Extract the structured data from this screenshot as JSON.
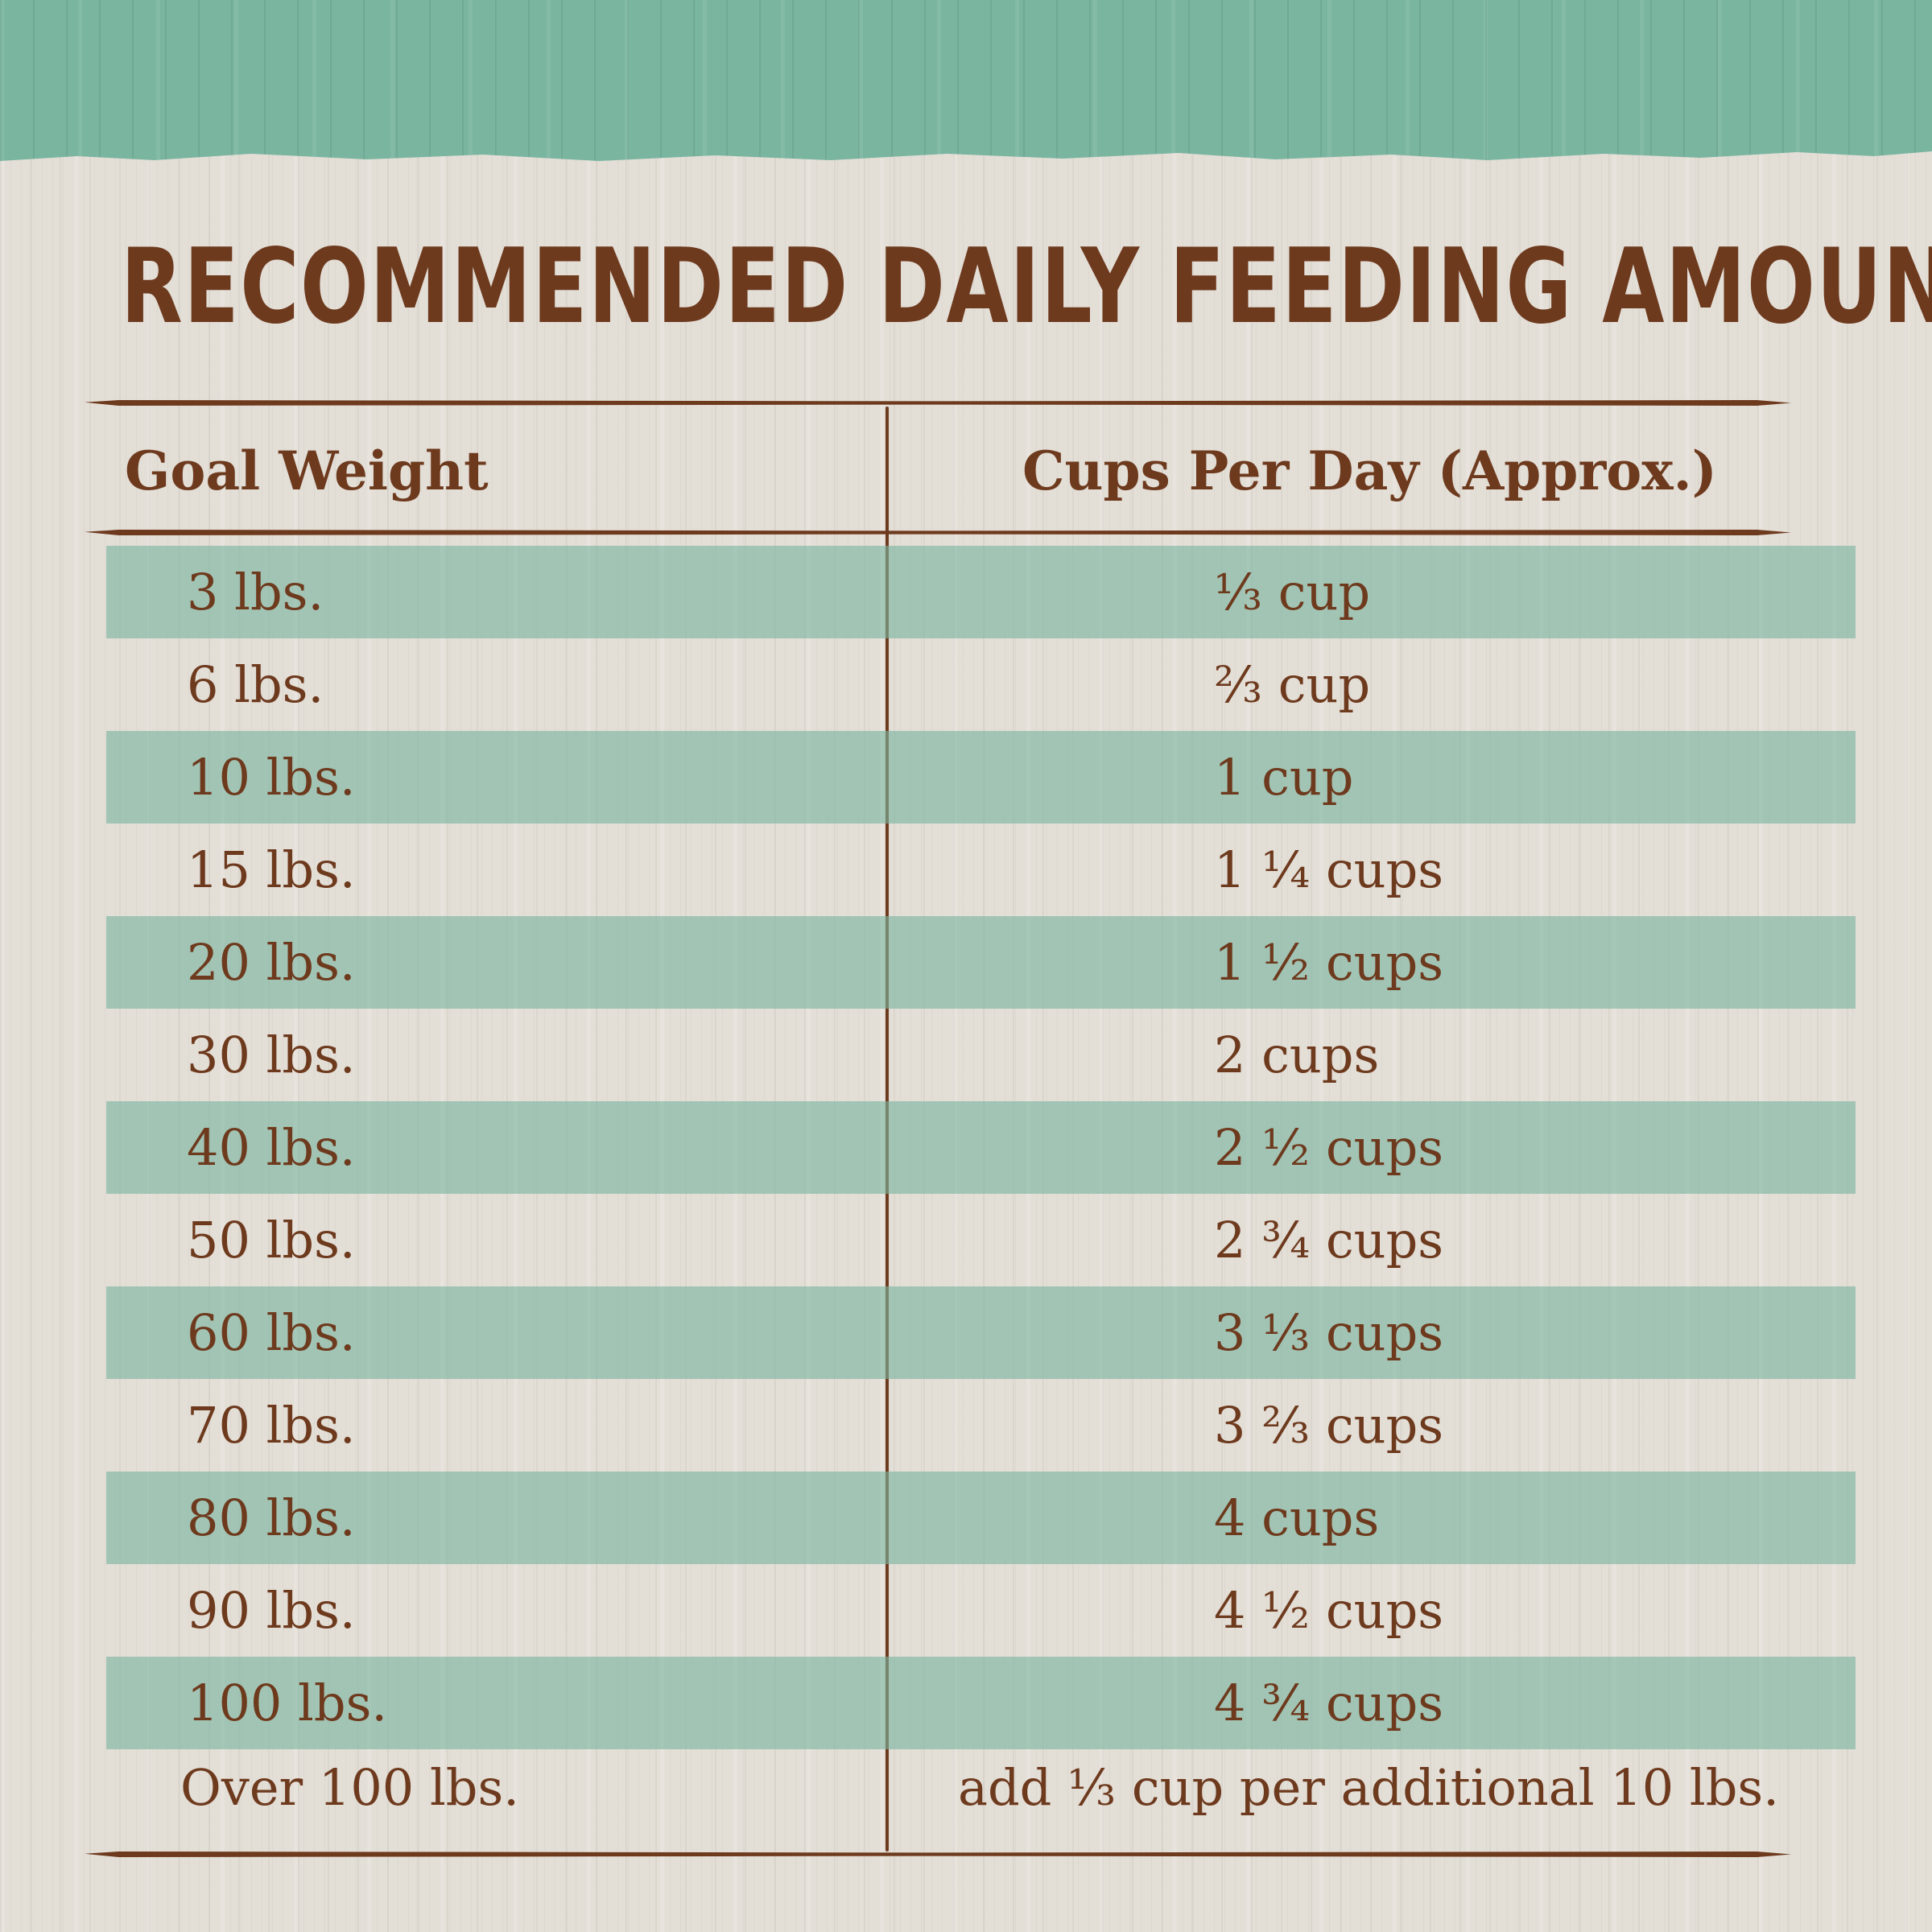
{
  "title": "RECOMMENDED DAILY FEEDING AMOUNTS:",
  "table": {
    "headers": {
      "weight": "Goal Weight",
      "cups": "Cups Per Day (Approx.)"
    },
    "rows": [
      {
        "weight": "3 lbs.",
        "cups": "⅓ cup"
      },
      {
        "weight": "6 lbs.",
        "cups": "⅔ cup"
      },
      {
        "weight": "10 lbs.",
        "cups": "1 cup"
      },
      {
        "weight": "15 lbs.",
        "cups": "1 ¼ cups"
      },
      {
        "weight": "20 lbs.",
        "cups": "1 ½ cups"
      },
      {
        "weight": "30 lbs.",
        "cups": "2 cups"
      },
      {
        "weight": "40 lbs.",
        "cups": "2 ½ cups"
      },
      {
        "weight": "50 lbs.",
        "cups": "2 ¾ cups"
      },
      {
        "weight": "60 lbs.",
        "cups": "3 ⅓ cups"
      },
      {
        "weight": "70 lbs.",
        "cups": "3 ⅔ cups"
      },
      {
        "weight": "80 lbs.",
        "cups": "4 cups"
      },
      {
        "weight": "90 lbs.",
        "cups": "4 ½ cups"
      },
      {
        "weight": "100 lbs.",
        "cups": "4 ¾ cups"
      },
      {
        "weight": "Over 100 lbs.",
        "cups": "add ⅓ cup per additional 10 lbs."
      }
    ]
  },
  "colors": {
    "band": "#7ab5a0",
    "text": "#6e3a1e",
    "background": "#e3ded6"
  }
}
